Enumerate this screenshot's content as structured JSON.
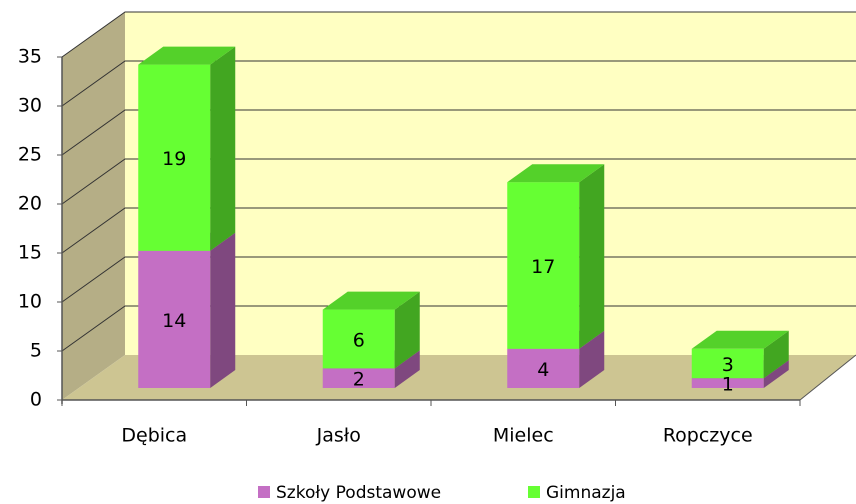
{
  "chart_data": {
    "type": "bar",
    "stacked": true,
    "three_d": true,
    "categories": [
      "Dębica",
      "Jasło",
      "Mielec",
      "Ropczyce"
    ],
    "series": [
      {
        "name": "Szkoły Podstawowe",
        "color": "#c46fc4",
        "values": [
          14,
          2,
          4,
          1
        ]
      },
      {
        "name": "Gimnazja",
        "color": "#66ff33",
        "values": [
          19,
          6,
          17,
          3
        ]
      }
    ],
    "ylim": [
      0,
      35
    ],
    "yticks": [
      0,
      5,
      10,
      15,
      20,
      25,
      30,
      35
    ],
    "grid": true,
    "legend": "bottom"
  }
}
